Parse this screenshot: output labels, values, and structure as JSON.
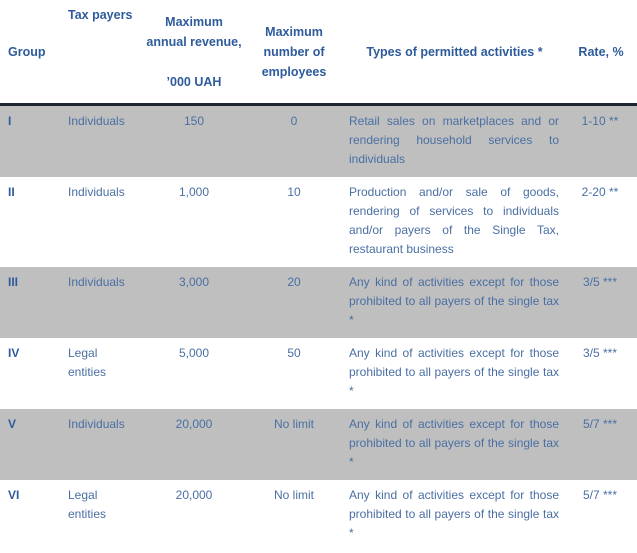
{
  "colors": {
    "header-text": "#2E5B9C",
    "body-text": "#4A6FA3",
    "row-shaded": "#BFBFBF",
    "divider": "#1E2530",
    "page-bg": "#FFFFFF"
  },
  "header": {
    "group": "Group",
    "tax_payers": "Tax payers",
    "revenue": "Maximum annual revenue,\n\n’000 UAH",
    "employees": "Maximum number of employees",
    "activities": "Types of permitted activities *",
    "rate": "Rate, %"
  },
  "rows": [
    {
      "group": "I",
      "tax_payers": "Individuals",
      "revenue": "150",
      "employees": "0",
      "activities": "Retail sales on marketplaces and or rendering household services to individuals",
      "rate": "1-10 **"
    },
    {
      "group": "II",
      "tax_payers": "Individuals",
      "revenue": "1,000",
      "employees": "10",
      "activities": "Production and/or sale of goods, rendering of services to individuals and/or payers of the Single Tax, restaurant business",
      "rate": "2-20 **"
    },
    {
      "group": "III",
      "tax_payers": "Individuals",
      "revenue": "3,000",
      "employees": "20",
      "activities": "Any kind of activities except for those prohibited to all payers of the single tax *",
      "rate": "3/5 ***"
    },
    {
      "group": "IV",
      "tax_payers": "Legal entities",
      "revenue": "5,000",
      "employees": "50",
      "activities": "Any kind of activities except for those prohibited to all payers of the single tax *",
      "rate": "3/5 ***"
    },
    {
      "group": "V",
      "tax_payers": "Individuals",
      "revenue": "20,000",
      "employees": "No limit",
      "activities": "Any kind of activities except for those prohibited to all payers of the single tax *",
      "rate": "5/7 ***"
    },
    {
      "group": "VI",
      "tax_payers": "Legal entities",
      "revenue": "20,000",
      "employees": "No limit",
      "activities": "Any kind of activities except for those prohibited to all payers of the single tax *",
      "rate": "5/7 ***"
    }
  ]
}
